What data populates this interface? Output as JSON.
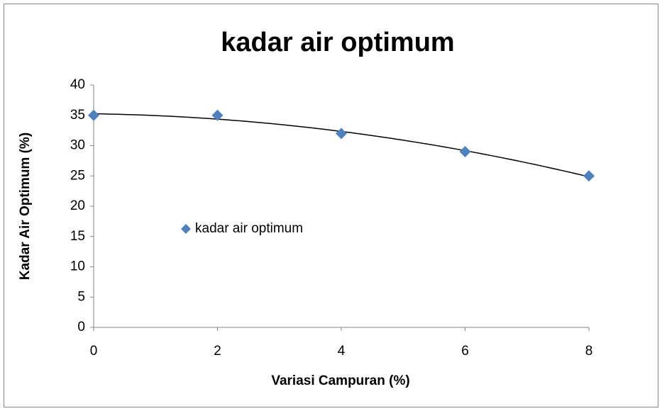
{
  "chart_data": {
    "type": "scatter",
    "title": "kadar air optimum",
    "x_label": "Variasi Campuran (%)",
    "y_label": "Kadar Air Optimum (%)",
    "x": [
      0,
      2,
      4,
      6,
      8
    ],
    "series": [
      {
        "name": "kadar air optimum",
        "color": "#4f81bd",
        "values": [
          35,
          35,
          32,
          29,
          25
        ]
      }
    ],
    "xlim": [
      0,
      8
    ],
    "xticks": [
      0,
      2,
      4,
      6,
      8
    ],
    "ylim": [
      0,
      40
    ],
    "yticks": [
      0,
      5,
      10,
      15,
      20,
      25,
      30,
      35,
      40
    ],
    "grid": false,
    "trendline": "polynomial",
    "trendline_order": 2,
    "trendline_color": "#000000",
    "legend": "inside-left"
  }
}
